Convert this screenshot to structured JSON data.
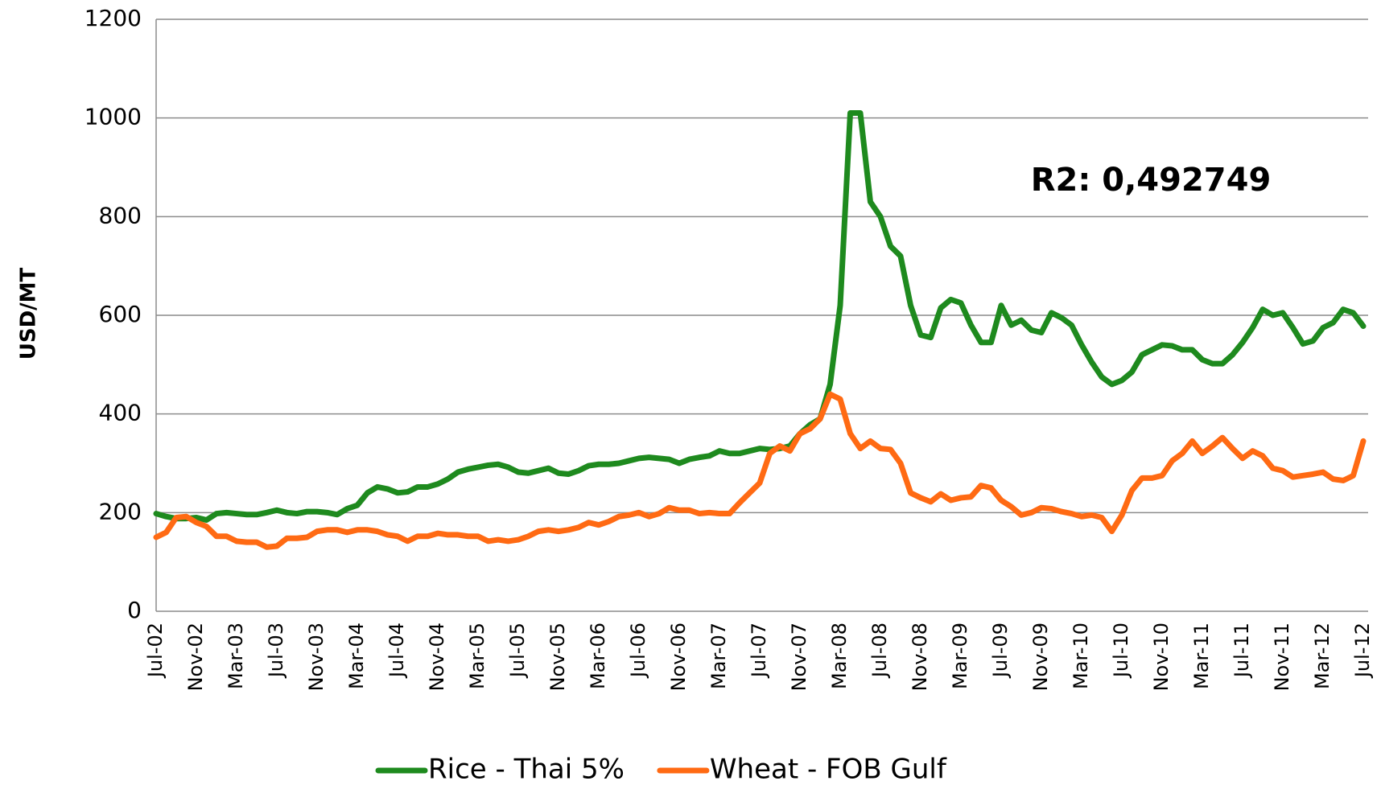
{
  "chart_data": {
    "type": "line",
    "ylabel": "USD/MT",
    "annotation": "R2: 0,492749",
    "categories": [
      "Jul-02",
      null,
      null,
      null,
      "Nov-02",
      null,
      null,
      null,
      "Mar-03",
      null,
      null,
      null,
      "Jul-03",
      null,
      null,
      null,
      "Nov-03",
      null,
      null,
      null,
      "Mar-04",
      null,
      null,
      null,
      "Jul-04",
      null,
      null,
      null,
      "Nov-04",
      null,
      null,
      null,
      "Mar-05",
      null,
      null,
      null,
      "Jul-05",
      null,
      null,
      null,
      "Nov-05",
      null,
      null,
      null,
      "Mar-06",
      null,
      null,
      null,
      "Jul-06",
      null,
      null,
      null,
      "Nov-06",
      null,
      null,
      null,
      "Mar-07",
      null,
      null,
      null,
      "Jul-07",
      null,
      null,
      null,
      "Nov-07",
      null,
      null,
      null,
      "Mar-08",
      null,
      null,
      null,
      "Jul-08",
      null,
      null,
      null,
      "Nov-08",
      null,
      null,
      null,
      "Mar-09",
      null,
      null,
      null,
      "Jul-09",
      null,
      null,
      null,
      "Nov-09",
      null,
      null,
      null,
      "Mar-10",
      null,
      null,
      null,
      "Jul-10",
      null,
      null,
      null,
      "Nov-10",
      null,
      null,
      null,
      "Mar-11",
      null,
      null,
      null,
      "Jul-11",
      null,
      null,
      null,
      "Nov-11",
      null,
      null,
      null,
      "Mar-12",
      null,
      null,
      null,
      "Jul-12"
    ],
    "series": [
      {
        "name": "Rice - Thai 5%",
        "color": "#1e8a1e",
        "values": [
          198,
          192,
          188,
          188,
          190,
          185,
          198,
          200,
          198,
          196,
          196,
          200,
          205,
          200,
          198,
          202,
          202,
          200,
          196,
          208,
          215,
          240,
          252,
          248,
          240,
          242,
          252,
          252,
          258,
          268,
          282,
          288,
          292,
          296,
          298,
          292,
          282,
          280,
          285,
          290,
          280,
          278,
          285,
          295,
          298,
          298,
          300,
          305,
          310,
          312,
          310,
          308,
          300,
          308,
          312,
          315,
          325,
          320,
          320,
          325,
          330,
          328,
          330,
          335,
          360,
          378,
          390,
          460,
          620,
          1010,
          1010,
          830,
          800,
          740,
          720,
          620,
          560,
          555,
          615,
          632,
          625,
          580,
          545,
          545,
          620,
          580,
          590,
          570,
          565,
          605,
          595,
          580,
          540,
          505,
          475,
          460,
          468,
          485,
          520,
          530,
          540,
          538,
          530,
          530,
          510,
          502,
          502,
          520,
          545,
          575,
          612,
          600,
          605,
          575,
          542,
          548,
          575,
          585,
          612,
          605,
          578
        ]
      },
      {
        "name": "Wheat - FOB Gulf",
        "color": "#ff6a13",
        "values": [
          150,
          160,
          190,
          192,
          180,
          172,
          152,
          152,
          142,
          140,
          140,
          130,
          132,
          148,
          148,
          150,
          162,
          165,
          165,
          160,
          165,
          165,
          162,
          155,
          152,
          142,
          152,
          152,
          158,
          155,
          155,
          152,
          152,
          142,
          145,
          142,
          145,
          152,
          162,
          165,
          162,
          165,
          170,
          180,
          175,
          182,
          192,
          195,
          200,
          192,
          198,
          210,
          205,
          205,
          198,
          200,
          198,
          198,
          220,
          240,
          260,
          320,
          335,
          325,
          360,
          370,
          390,
          440,
          430,
          360,
          330,
          345,
          330,
          328,
          300,
          240,
          230,
          222,
          238,
          225,
          230,
          232,
          255,
          250,
          225,
          212,
          195,
          200,
          210,
          208,
          202,
          198,
          192,
          195,
          190,
          162,
          195,
          245,
          270,
          270,
          275,
          305,
          320,
          345,
          320,
          335,
          352,
          330,
          310,
          325,
          315,
          290,
          285,
          272,
          275,
          278,
          282,
          268,
          265,
          275,
          345
        ]
      }
    ],
    "ylim": [
      0,
      1200
    ],
    "yticks": [
      0,
      200,
      400,
      600,
      800,
      1000,
      1200
    ],
    "grid": true,
    "legend": "bottom"
  }
}
